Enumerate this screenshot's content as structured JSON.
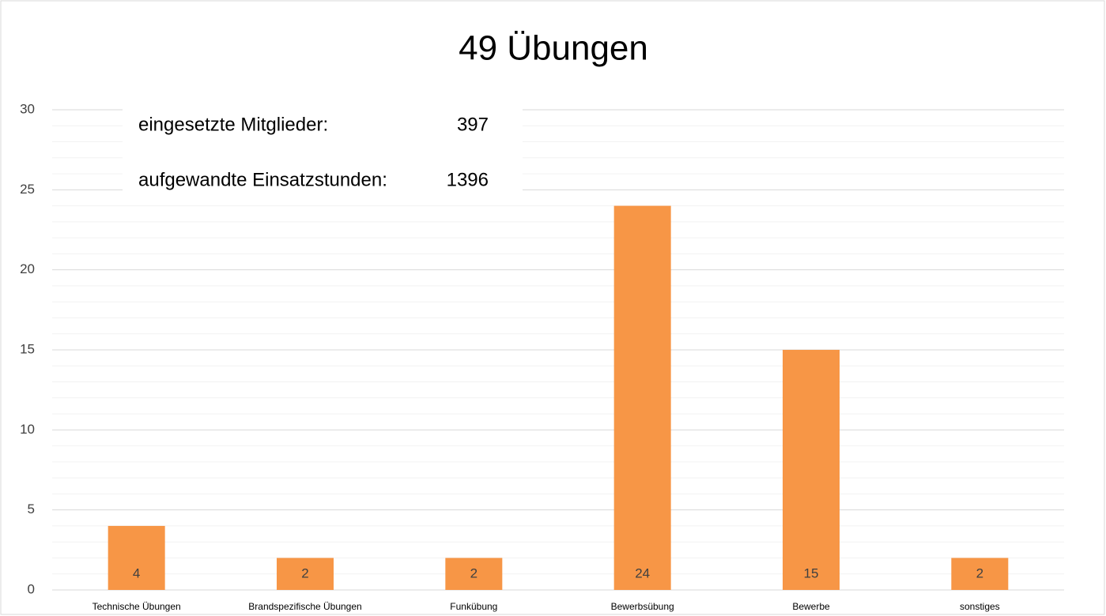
{
  "chart_data": {
    "type": "bar",
    "title": "49 Übungen",
    "categories": [
      "Technische Übungen",
      "Brandspezifische Übungen",
      "Funkübung",
      "Bewerbsübung",
      "Bewerbe",
      "sonstiges"
    ],
    "values": [
      4,
      2,
      2,
      24,
      15,
      2
    ],
    "color": "#f79646",
    "ylim": [
      0,
      30
    ],
    "yticks": [
      0,
      5,
      10,
      15,
      20,
      25,
      30
    ],
    "minor_yticks": [
      1,
      2,
      3,
      4,
      6,
      7,
      8,
      9,
      11,
      12,
      13,
      14,
      16,
      17,
      18,
      19,
      21,
      22,
      23,
      24,
      26,
      27,
      28,
      29
    ],
    "grid": true,
    "annotations": [
      {
        "label": "eingesetzte Mitglieder:",
        "value": 397
      },
      {
        "label": "aufgewandte Einsatzstunden:",
        "value": 1396
      }
    ]
  }
}
